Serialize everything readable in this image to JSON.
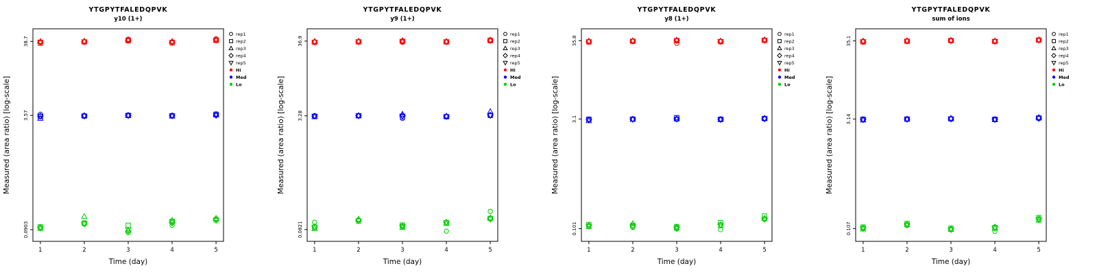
{
  "page": {
    "background": "#ffffff"
  },
  "charts_common": {
    "ylabel": "Measured (area ratio) [log-scale]",
    "xlabel": "Time (day)",
    "x_ticks": [
      1,
      2,
      3,
      4,
      5
    ],
    "legend": {
      "position": "right",
      "reps": [
        {
          "label": "rep1",
          "symbol": "circle"
        },
        {
          "label": "rep2",
          "symbol": "square"
        },
        {
          "label": "rep3",
          "symbol": "triangle-up"
        },
        {
          "label": "rep4",
          "symbol": "diamond"
        },
        {
          "label": "rep5",
          "symbol": "triangle-down"
        }
      ],
      "levels": [
        {
          "label": "Hi",
          "color": "#FF0000"
        },
        {
          "label": "Med",
          "color": "#0000FF"
        },
        {
          "label": "Lo",
          "color": "#00CD00"
        }
      ]
    }
  },
  "chart_data": [
    {
      "type": "scatter",
      "title": "YTGPYTFALEDQPVK",
      "subtitle": "y10 (1+)",
      "xlabel": "Time (day)",
      "ylabel": "Measured (area ratio) [log-scale]",
      "x": [
        1,
        2,
        3,
        4,
        5
      ],
      "y_scale": "log10",
      "y_ticks": [
        38.7,
        3.57,
        0.0903
      ],
      "ylim": [
        0.062,
        58
      ],
      "grid": false,
      "series": [
        {
          "level": "Hi",
          "rep": "rep1",
          "values": [
            38.0,
            38.5,
            41.5,
            38.0,
            42.0
          ]
        },
        {
          "level": "Hi",
          "rep": "rep2",
          "values": [
            36.5,
            38.0,
            39.5,
            36.8,
            40.0
          ]
        },
        {
          "level": "Hi",
          "rep": "rep3",
          "values": [
            38.5,
            39.0,
            40.5,
            38.5,
            40.5
          ]
        },
        {
          "level": "Hi",
          "rep": "rep4",
          "values": [
            37.5,
            38.5,
            40.0,
            37.5,
            40.5
          ]
        },
        {
          "level": "Hi",
          "rep": "rep5",
          "values": [
            37.8,
            38.2,
            40.2,
            37.6,
            40.2
          ]
        },
        {
          "level": "Med",
          "rep": "rep1",
          "values": [
            3.7,
            3.55,
            3.6,
            3.58,
            3.75
          ]
        },
        {
          "level": "Med",
          "rep": "rep2",
          "values": [
            3.45,
            3.5,
            3.58,
            3.52,
            3.7
          ]
        },
        {
          "level": "Med",
          "rep": "rep3",
          "values": [
            3.25,
            3.55,
            3.56,
            3.5,
            3.62
          ]
        },
        {
          "level": "Med",
          "rep": "rep4",
          "values": [
            3.5,
            3.52,
            3.57,
            3.54,
            3.6
          ]
        },
        {
          "level": "Med",
          "rep": "rep5",
          "values": [
            3.48,
            3.5,
            3.55,
            3.52,
            3.58
          ]
        },
        {
          "level": "Lo",
          "rep": "rep1",
          "values": [
            0.096,
            0.108,
            0.082,
            0.104,
            0.128
          ]
        },
        {
          "level": "Lo",
          "rep": "rep2",
          "values": [
            0.099,
            0.112,
            0.104,
            0.118,
            0.124
          ]
        },
        {
          "level": "Lo",
          "rep": "rep3",
          "values": [
            0.094,
            0.138,
            0.088,
            0.122,
            0.13
          ]
        },
        {
          "level": "Lo",
          "rep": "rep4",
          "values": [
            0.097,
            0.11,
            0.086,
            0.112,
            0.126
          ]
        },
        {
          "level": "Lo",
          "rep": "rep5",
          "values": [
            0.095,
            0.109,
            0.09,
            0.115,
            0.122
          ]
        }
      ]
    },
    {
      "type": "scatter",
      "title": "YTGPYTFALEDQPVK",
      "subtitle": "y9 (1+)",
      "xlabel": "Time (day)",
      "ylabel": "Measured (area ratio) [log-scale]",
      "x": [
        1,
        2,
        3,
        4,
        5
      ],
      "y_scale": "log10",
      "y_ticks": [
        36.9,
        3.28,
        0.0821
      ],
      "ylim": [
        0.056,
        55
      ],
      "grid": false,
      "series": [
        {
          "level": "Hi",
          "rep": "rep1",
          "values": [
            36.0,
            36.5,
            35.5,
            36.2,
            38.5
          ]
        },
        {
          "level": "Hi",
          "rep": "rep2",
          "values": [
            35.5,
            36.0,
            36.5,
            36.0,
            37.5
          ]
        },
        {
          "level": "Hi",
          "rep": "rep3",
          "values": [
            36.5,
            36.8,
            37.5,
            36.5,
            38.0
          ]
        },
        {
          "level": "Hi",
          "rep": "rep4",
          "values": [
            36.0,
            36.4,
            37.0,
            36.3,
            37.8
          ]
        },
        {
          "level": "Hi",
          "rep": "rep5",
          "values": [
            35.8,
            36.2,
            36.8,
            36.1,
            37.6
          ]
        },
        {
          "level": "Med",
          "rep": "rep1",
          "values": [
            3.28,
            3.3,
            3.02,
            3.2,
            3.3
          ]
        },
        {
          "level": "Med",
          "rep": "rep2",
          "values": [
            3.22,
            3.28,
            3.15,
            3.18,
            3.32
          ]
        },
        {
          "level": "Med",
          "rep": "rep3",
          "values": [
            3.18,
            3.3,
            3.45,
            3.25,
            3.75
          ]
        },
        {
          "level": "Med",
          "rep": "rep4",
          "values": [
            3.25,
            3.29,
            3.28,
            3.22,
            3.35
          ]
        },
        {
          "level": "Med",
          "rep": "rep5",
          "values": [
            3.24,
            3.27,
            3.26,
            3.2,
            3.33
          ]
        },
        {
          "level": "Lo",
          "rep": "rep1",
          "values": [
            0.104,
            0.112,
            0.09,
            0.078,
            0.148
          ]
        },
        {
          "level": "Lo",
          "rep": "rep2",
          "values": [
            0.088,
            0.108,
            0.095,
            0.102,
            0.118
          ]
        },
        {
          "level": "Lo",
          "rep": "rep3",
          "values": [
            0.085,
            0.115,
            0.088,
            0.1,
            0.12
          ]
        },
        {
          "level": "Lo",
          "rep": "rep4",
          "values": [
            0.09,
            0.11,
            0.092,
            0.104,
            0.116
          ]
        },
        {
          "level": "Lo",
          "rep": "rep5",
          "values": [
            0.089,
            0.109,
            0.091,
            0.103,
            0.115
          ]
        }
      ]
    },
    {
      "type": "scatter",
      "title": "YTGPYTFALEDQPVK",
      "subtitle": "y8 (1+)",
      "xlabel": "Time (day)",
      "ylabel": "Measured (area ratio) [log-scale]",
      "x": [
        1,
        2,
        3,
        4,
        5
      ],
      "y_scale": "log10",
      "y_ticks": [
        35.8,
        3.1,
        0.101
      ],
      "ylim": [
        0.068,
        52
      ],
      "grid": false,
      "series": [
        {
          "level": "Hi",
          "rep": "rep1",
          "values": [
            35.0,
            35.5,
            33.0,
            35.2,
            36.5
          ]
        },
        {
          "level": "Hi",
          "rep": "rep2",
          "values": [
            34.5,
            35.2,
            36.0,
            34.8,
            36.2
          ]
        },
        {
          "level": "Hi",
          "rep": "rep3",
          "values": [
            35.5,
            35.8,
            36.5,
            35.5,
            36.8
          ]
        },
        {
          "level": "Hi",
          "rep": "rep4",
          "values": [
            35.0,
            35.5,
            36.2,
            35.0,
            36.5
          ]
        },
        {
          "level": "Hi",
          "rep": "rep5",
          "values": [
            34.8,
            35.4,
            36.0,
            35.1,
            36.4
          ]
        },
        {
          "level": "Med",
          "rep": "rep1",
          "values": [
            3.05,
            3.1,
            3.08,
            3.1,
            3.12
          ]
        },
        {
          "level": "Med",
          "rep": "rep2",
          "values": [
            3.08,
            3.09,
            3.25,
            3.08,
            3.15
          ]
        },
        {
          "level": "Med",
          "rep": "rep3",
          "values": [
            2.95,
            3.08,
            3.1,
            3.05,
            3.18
          ]
        },
        {
          "level": "Med",
          "rep": "rep4",
          "values": [
            3.04,
            3.09,
            3.12,
            3.07,
            3.14
          ]
        },
        {
          "level": "Med",
          "rep": "rep5",
          "values": [
            3.02,
            3.07,
            3.1,
            3.06,
            3.13
          ]
        },
        {
          "level": "Lo",
          "rep": "rep1",
          "values": [
            0.11,
            0.105,
            0.1,
            0.098,
            0.135
          ]
        },
        {
          "level": "Lo",
          "rep": "rep2",
          "values": [
            0.115,
            0.112,
            0.108,
            0.122,
            0.15
          ]
        },
        {
          "level": "Lo",
          "rep": "rep3",
          "values": [
            0.108,
            0.118,
            0.104,
            0.112,
            0.14
          ]
        },
        {
          "level": "Lo",
          "rep": "rep4",
          "values": [
            0.112,
            0.11,
            0.106,
            0.115,
            0.138
          ]
        },
        {
          "level": "Lo",
          "rep": "rep5",
          "values": [
            0.109,
            0.108,
            0.103,
            0.113,
            0.136
          ]
        }
      ]
    },
    {
      "type": "scatter",
      "title": "YTGPYTFALEDQPVK",
      "subtitle": "sum of ions",
      "xlabel": "Time (day)",
      "ylabel": "Measured (area ratio) [log-scale]",
      "x": [
        1,
        2,
        3,
        4,
        5
      ],
      "y_scale": "log10",
      "y_ticks": [
        35.1,
        3.14,
        0.107
      ],
      "ylim": [
        0.072,
        51
      ],
      "grid": false,
      "series": [
        {
          "level": "Hi",
          "rep": "rep1",
          "values": [
            34.5,
            35.0,
            35.2,
            34.8,
            36.5
          ]
        },
        {
          "level": "Hi",
          "rep": "rep2",
          "values": [
            34.0,
            34.8,
            35.5,
            34.5,
            36.0
          ]
        },
        {
          "level": "Hi",
          "rep": "rep3",
          "values": [
            35.0,
            35.2,
            35.8,
            35.0,
            36.2
          ]
        },
        {
          "level": "Hi",
          "rep": "rep4",
          "values": [
            34.6,
            35.0,
            35.5,
            34.7,
            36.1
          ]
        },
        {
          "level": "Hi",
          "rep": "rep5",
          "values": [
            34.4,
            34.9,
            35.3,
            34.6,
            35.9
          ]
        },
        {
          "level": "Med",
          "rep": "rep1",
          "values": [
            3.1,
            3.12,
            3.15,
            3.1,
            3.2
          ]
        },
        {
          "level": "Med",
          "rep": "rep2",
          "values": [
            3.12,
            3.14,
            3.16,
            3.12,
            3.25
          ]
        },
        {
          "level": "Med",
          "rep": "rep3",
          "values": [
            3.05,
            3.13,
            3.22,
            3.08,
            3.3
          ]
        },
        {
          "level": "Med",
          "rep": "rep4",
          "values": [
            3.1,
            3.13,
            3.17,
            3.1,
            3.22
          ]
        },
        {
          "level": "Med",
          "rep": "rep5",
          "values": [
            3.08,
            3.12,
            3.15,
            3.09,
            3.21
          ]
        },
        {
          "level": "Lo",
          "rep": "rep1",
          "values": [
            0.108,
            0.118,
            0.105,
            0.098,
            0.142
          ]
        },
        {
          "level": "Lo",
          "rep": "rep2",
          "values": [
            0.112,
            0.125,
            0.108,
            0.11,
            0.15
          ]
        },
        {
          "level": "Lo",
          "rep": "rep3",
          "values": [
            0.105,
            0.12,
            0.104,
            0.108,
            0.138
          ]
        },
        {
          "level": "Lo",
          "rep": "rep4",
          "values": [
            0.11,
            0.122,
            0.106,
            0.112,
            0.145
          ]
        },
        {
          "level": "Lo",
          "rep": "rep5",
          "values": [
            0.107,
            0.119,
            0.103,
            0.109,
            0.14
          ]
        }
      ]
    }
  ]
}
